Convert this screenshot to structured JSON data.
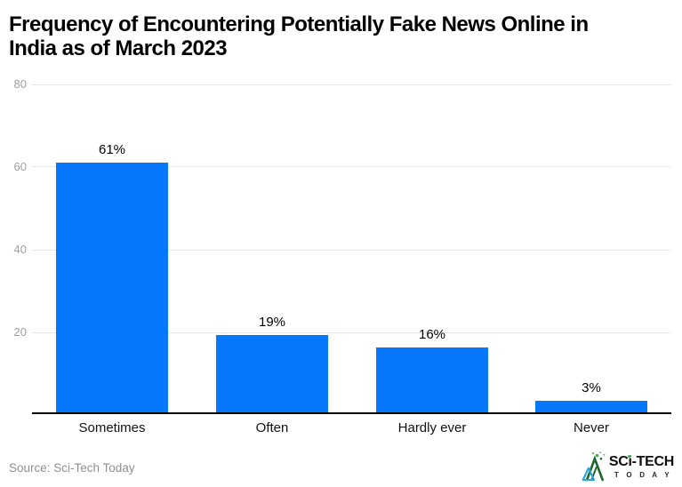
{
  "header": {
    "title_lines": [
      "Frequency of Encountering Potentially Fake News Online in",
      "India as of March 2023"
    ]
  },
  "chart_data": {
    "type": "bar",
    "title": "Frequency of Encountering Potentially Fake News Online in India as of March 2023",
    "categories": [
      "Sometimes",
      "Often",
      "Hardly ever",
      "Never"
    ],
    "values": [
      61,
      19,
      16,
      3
    ],
    "value_labels": [
      "61%",
      "19%",
      "16%",
      "3%"
    ],
    "unit": "%",
    "xlabel": "",
    "ylabel": "",
    "ylim": [
      0,
      80
    ],
    "yticks": [
      20,
      40,
      60,
      80
    ],
    "ytick_labels_top_to_bottom": [
      "80",
      "60",
      "40",
      "20"
    ],
    "grid": "horizontal",
    "legend": "none",
    "bar_color": "#0778fd"
  },
  "footer": {
    "source": "Source: Sci-Tech Today",
    "logo": {
      "name": "SCi-TECH",
      "tagline": "T O D A Y",
      "colors": {
        "text": "#0f0f0f",
        "green_dark": "#1e682e",
        "green_light": "#3dae49",
        "blue": "#2aa3e0"
      }
    }
  }
}
